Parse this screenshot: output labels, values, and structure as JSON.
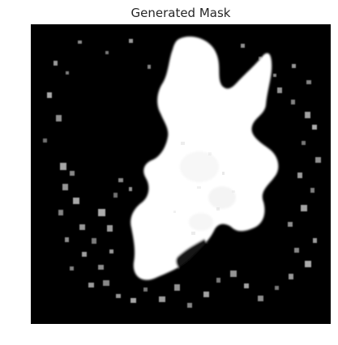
{
  "figure": {
    "title": "Generated Mask",
    "background_color": "#ffffff",
    "image_background_color": "#000000",
    "mask_color": "#ffffff",
    "noise_color": "#d8d8d8"
  }
}
